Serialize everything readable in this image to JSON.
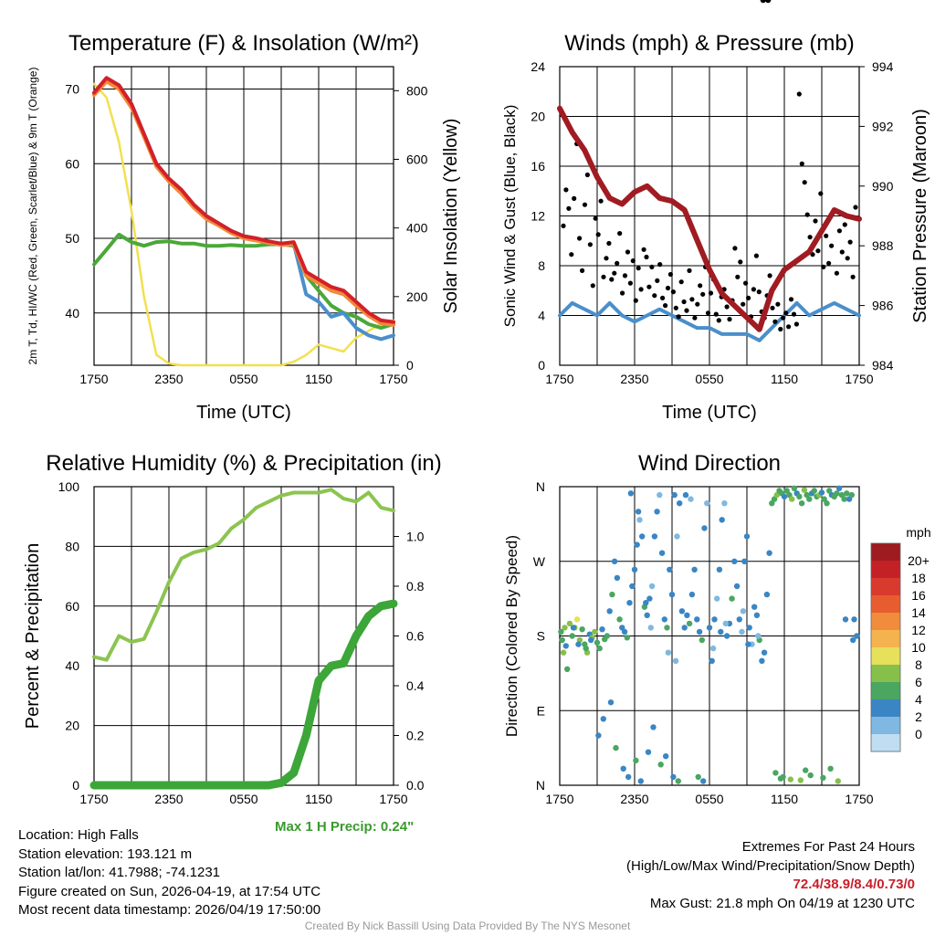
{
  "chart_data": [
    {
      "id": "temp",
      "type": "line",
      "title": "Temperature (F) & Insolation (W/m²)",
      "xlabel": "Time (UTC)",
      "ylabel": "2m T, Td, HI/WC (Red, Green, Scarlet/Blue) & 9m T (Orange)",
      "ylabel_right": "Solar Insolation (Yellow)",
      "xticks": [
        "1750",
        "2350",
        "0550",
        "1150",
        "1750"
      ],
      "yticks": [
        40,
        50,
        60,
        70
      ],
      "yticks_right": [
        0,
        200,
        400,
        600,
        800
      ],
      "ylim": [
        33,
        73
      ],
      "ylim_right": [
        0,
        870
      ],
      "x": [
        0,
        1,
        2,
        3,
        4,
        5,
        6,
        7,
        8,
        9,
        10,
        11,
        12,
        13,
        14,
        15,
        16,
        17,
        18,
        19,
        20,
        21,
        22,
        23,
        24
      ],
      "series": [
        {
          "name": "2m T",
          "color": "#d42028",
          "values": [
            69.5,
            71.5,
            70.5,
            68,
            64,
            60,
            58,
            56.5,
            54.5,
            53,
            52,
            51,
            50.3,
            50,
            49.6,
            49.3,
            49.5,
            45.5,
            44.5,
            43.5,
            43,
            41.5,
            40,
            39,
            38.8
          ]
        },
        {
          "name": "9m T",
          "color": "#f08a3a",
          "values": [
            69.2,
            71,
            70,
            67.5,
            63.6,
            59.6,
            57.6,
            56,
            54.1,
            52.6,
            51.7,
            50.7,
            50,
            49.7,
            49.4,
            49.1,
            49.2,
            45,
            44,
            43,
            42.5,
            41,
            39.6,
            38.6,
            38.4
          ]
        },
        {
          "name": "HI/WC",
          "color": "#4a8fcc",
          "values": [
            69.5,
            71.5,
            70.5,
            68,
            64,
            60,
            58,
            56.5,
            54.5,
            53,
            52,
            51,
            50.3,
            50,
            49.6,
            49.2,
            49.3,
            42.5,
            41.5,
            39.5,
            40,
            38,
            37,
            36.5,
            37
          ]
        },
        {
          "name": "2m Td",
          "color": "#4aa838",
          "values": [
            46.5,
            48.5,
            50.5,
            49.5,
            49,
            49.5,
            49.6,
            49.3,
            49.3,
            49,
            49,
            49.1,
            49,
            49,
            49.2,
            49.2,
            49,
            45,
            43,
            41,
            40,
            39.5,
            38.5,
            38,
            38.5
          ]
        },
        {
          "name": "Solar Insolation",
          "color": "#f2e050",
          "axis": "right",
          "values": [
            820,
            780,
            650,
            450,
            200,
            30,
            5,
            0,
            0,
            0,
            0,
            0,
            0,
            0,
            0,
            0,
            10,
            30,
            60,
            50,
            40,
            80,
            100,
            120,
            130
          ]
        }
      ]
    },
    {
      "id": "wind",
      "type": "line",
      "title": "Winds (mph) & Pressure (mb)",
      "xlabel": "Time (UTC)",
      "ylabel": "Sonic Wind & Gust (Blue, Black)",
      "ylabel_right": "Station Pressure (Maroon)",
      "xticks": [
        "1750",
        "2350",
        "0550",
        "1150",
        "1750"
      ],
      "yticks": [
        0,
        4,
        8,
        12,
        16,
        20,
        24
      ],
      "yticks_right": [
        984,
        986,
        988,
        990,
        992,
        994
      ],
      "ylim": [
        0,
        24
      ],
      "ylim_right": [
        984,
        994
      ],
      "x": [
        0,
        1,
        2,
        3,
        4,
        5,
        6,
        7,
        8,
        9,
        10,
        11,
        12,
        13,
        14,
        15,
        16,
        17,
        18,
        19,
        20,
        21,
        22,
        23,
        24
      ],
      "series": [
        {
          "name": "Sonic Wind",
          "color": "#4a8fcc",
          "values": [
            4,
            5,
            4.5,
            4,
            5,
            4,
            3.5,
            4,
            4.5,
            4,
            3.5,
            3,
            3,
            2.5,
            2.5,
            2.5,
            2,
            3,
            4,
            5,
            4,
            4.5,
            5,
            4.5,
            4
          ]
        },
        {
          "name": "Station Pressure",
          "color": "#a01c22",
          "axis": "right",
          "values": [
            992.6,
            991.8,
            991.2,
            990.3,
            989.6,
            989.4,
            989.8,
            990,
            989.6,
            989.5,
            989.2,
            988.2,
            987.2,
            986.4,
            986,
            985.6,
            985.2,
            986.5,
            987.2,
            987.5,
            987.8,
            988.5,
            989.2,
            989,
            988.9
          ]
        }
      ],
      "gusts": [
        11.2,
        14.1,
        12.6,
        8.9,
        13.4,
        17.8,
        10.2,
        7.6,
        12.9,
        15.3,
        9.7,
        6.4,
        11.8,
        10.5,
        13.2,
        7.1,
        8.6,
        9.8,
        6.9,
        7.4,
        8.2,
        10.6,
        5.8,
        7.2,
        9.1,
        6.6,
        8.4,
        5.2,
        7.8,
        6.1,
        9.3,
        8.7,
        6.3,
        7.9,
        5.6,
        6.8,
        8.1,
        5.4,
        4.8,
        6.2,
        7.3,
        5.9,
        4.6,
        3.9,
        6.7,
        5.1,
        4.4,
        7.6,
        5.3,
        3.8,
        4.9,
        6.4,
        5.7,
        7.9,
        4.2,
        5.8,
        6.9,
        4.1,
        3.6,
        5.5,
        6.1,
        4.7,
        3.7,
        5.2,
        9.4,
        7.1,
        8.3,
        4.9,
        6.6,
        5.4,
        3.9,
        6.1,
        8.8,
        5.9,
        4.3,
        3.8,
        5.6,
        7.2,
        4.6,
        3.5,
        4.9,
        2.9,
        3.8,
        4.2,
        3.1,
        5.3,
        4.1,
        3.3,
        21.8,
        16.2,
        14.7,
        12.1,
        10.3,
        8.9,
        11.6,
        9.2,
        13.8,
        7.9,
        10.4,
        8.2,
        9.6,
        12.4,
        7.4,
        10.8,
        9.1,
        11.3,
        8.6,
        9.9,
        7.1,
        12.7
      ],
      "annotations": {
        "max_gust": "Max Gust: 21.8 mph On 04/19 at 1230 UTC"
      }
    },
    {
      "id": "rh",
      "type": "line",
      "title": "Relative Humidity (%) & Precipitation (in)",
      "ylabel": "Percent & Precipitation",
      "xticks": [
        "1750",
        "2350",
        "0550",
        "1150",
        "1750"
      ],
      "yticks": [
        0,
        20,
        40,
        60,
        80,
        100
      ],
      "yticks_right": [
        "0.0",
        "0.2",
        "0.4",
        "0.6",
        "0.8",
        "1.0"
      ],
      "ylim": [
        0,
        100
      ],
      "ylim_right": [
        0,
        1.2
      ],
      "x": [
        0,
        1,
        2,
        3,
        4,
        5,
        6,
        7,
        8,
        9,
        10,
        11,
        12,
        13,
        14,
        15,
        16,
        17,
        18,
        19,
        20,
        21,
        22,
        23,
        24
      ],
      "series": [
        {
          "name": "Relative Humidity",
          "color": "#8cc450",
          "values": [
            43,
            42,
            50,
            48,
            49,
            58,
            68,
            76,
            78,
            79,
            81,
            86,
            89,
            93,
            95,
            97,
            98,
            98,
            98,
            99,
            96,
            95,
            98,
            93,
            92
          ]
        },
        {
          "name": "Precipitation",
          "color": "#3ca638",
          "axis": "right",
          "values": [
            0,
            0,
            0,
            0,
            0,
            0,
            0,
            0,
            0,
            0,
            0,
            0,
            0,
            0,
            0,
            0.01,
            0.05,
            0.2,
            0.42,
            0.48,
            0.49,
            0.6,
            0.68,
            0.72,
            0.73
          ]
        }
      ],
      "annotations": {
        "max_precip": "Max 1 H Precip: 0.24\""
      }
    },
    {
      "id": "dir",
      "type": "scatter",
      "title": "Wind Direction",
      "ylabel": "Direction (Colored By Speed)",
      "xticks": [
        "1750",
        "2350",
        "0550",
        "1150",
        "1750"
      ],
      "yticks": [
        "N",
        "E",
        "S",
        "W",
        "N"
      ],
      "ylim": [
        0,
        360
      ],
      "colorbar_title": "mph",
      "colorbar_labels": [
        "20+",
        "18",
        "16",
        "14",
        "12",
        "10",
        "8",
        "6",
        "4",
        "2",
        "0"
      ],
      "colorbar_colors": [
        "#9e1b1f",
        "#c42127",
        "#d93a2e",
        "#e85d2f",
        "#f08c3b",
        "#f4b34e",
        "#e6e05a",
        "#86c04a",
        "#4aa661",
        "#3a86c4",
        "#7fb8e0",
        "#bfdef2"
      ],
      "points_x": [
        0.1,
        0.2,
        0.3,
        0.4,
        0.5,
        0.6,
        0.8,
        1.0,
        1.2,
        1.4,
        1.6,
        1.8,
        2.0,
        2.2,
        2.4,
        2.6,
        2.8,
        3.0,
        3.2,
        3.4,
        3.6,
        3.8,
        4.0,
        4.2,
        4.4,
        4.6,
        4.8,
        5.0,
        5.2,
        5.4,
        5.6,
        5.8,
        6.0,
        6.2,
        6.4,
        6.6,
        6.8,
        7.0,
        7.2,
        7.4,
        7.6,
        7.8,
        8.0,
        8.2,
        8.4,
        8.6,
        8.8,
        9.0,
        9.2,
        9.4,
        9.6,
        9.8,
        10.0,
        10.2,
        10.4,
        10.6,
        10.8,
        11.0,
        11.2,
        11.4,
        11.6,
        11.8,
        12.0,
        12.2,
        12.4,
        12.6,
        12.8,
        13.0,
        13.2,
        13.4,
        13.6,
        13.8,
        14.0,
        14.2,
        14.4,
        14.6,
        14.8,
        15.0,
        15.2,
        15.4,
        15.6,
        15.8,
        16.0,
        16.2,
        16.4,
        16.6,
        16.8,
        17.0,
        17.2,
        17.4,
        17.6,
        17.8,
        18.0,
        18.2,
        18.4,
        18.6,
        18.8,
        19.0,
        19.2,
        19.4,
        19.6,
        19.8,
        20.0,
        20.2,
        20.4,
        20.6,
        20.8,
        21.0,
        21.2,
        21.4,
        21.6,
        21.8,
        22.0,
        22.2,
        22.4,
        22.6,
        22.8,
        23.0,
        23.2,
        23.4,
        23.6,
        23.8,
        1.1,
        1.5,
        2.1,
        2.5,
        3.1,
        3.5,
        4.1,
        4.5,
        5.1,
        5.5,
        6.1,
        6.5,
        7.1,
        7.5,
        8.1,
        8.5,
        9.1,
        9.5,
        10.1,
        10.5,
        5.7,
        6.3,
        6.9,
        7.3,
        8.7,
        9.3,
        11.1,
        11.5,
        17.3,
        17.7,
        19.3,
        20.1,
        21.7,
        22.3,
        17.9,
        18.5,
        19.7,
        21.1,
        22.9,
        23.5,
        12.3,
        12.9,
        13.3,
        14.7,
        15.1,
        15.9,
        16.3,
        16.7
      ],
      "points_dir": [
        185,
        175,
        160,
        190,
        168,
        140,
        195,
        180,
        190,
        200,
        175,
        188,
        170,
        160,
        182,
        178,
        185,
        172,
        165,
        188,
        176,
        180,
        210,
        230,
        270,
        250,
        200,
        190,
        185,
        178,
        220,
        240,
        260,
        290,
        320,
        300,
        215,
        205,
        225,
        240,
        300,
        330,
        350,
        280,
        200,
        190,
        260,
        230,
        350,
        300,
        340,
        210,
        190,
        205,
        195,
        230,
        260,
        200,
        185,
        175,
        310,
        340,
        190,
        150,
        200,
        225,
        260,
        320,
        340,
        180,
        195,
        225,
        270,
        240,
        200,
        185,
        270,
        300,
        190,
        170,
        215,
        205,
        175,
        150,
        160,
        230,
        280,
        340,
        345,
        350,
        355,
        352,
        348,
        355,
        350,
        345,
        358,
        352,
        348,
        340,
        356,
        350,
        345,
        352,
        355,
        348,
        350,
        353,
        345,
        340,
        355,
        350,
        348,
        352,
        358,
        350,
        345,
        352,
        345,
        350,
        200,
        180,
        190,
        170,
        165,
        175,
        60,
        80,
        100,
        45,
        20,
        10,
        30,
        5,
        40,
        70,
        25,
        35,
        10,
        5,
        350,
        345,
        352,
        330,
        220,
        190,
        160,
        150,
        10,
        5,
        15,
        8,
        6,
        12,
        20,
        5,
        10,
        7,
        18,
        9,
        200,
        175,
        165,
        185,
        195,
        210,
        170,
        180
      ],
      "points_speed": [
        5,
        4,
        7,
        6,
        3,
        4,
        7,
        5,
        6,
        8,
        7,
        5,
        4,
        6,
        3,
        7,
        6,
        5,
        4,
        3,
        5,
        4,
        3,
        4,
        2,
        3,
        4,
        3,
        2,
        4,
        3,
        2,
        3,
        2,
        1,
        2,
        4,
        3,
        2,
        1,
        2,
        3,
        1,
        2,
        3,
        4,
        2,
        3,
        2,
        1,
        2,
        3,
        2,
        3,
        4,
        2,
        3,
        2,
        3,
        4,
        2,
        1,
        2,
        3,
        2,
        1,
        2,
        3,
        1,
        2,
        3,
        4,
        2,
        3,
        2,
        1,
        2,
        3,
        2,
        1,
        2,
        3,
        4,
        3,
        2,
        3,
        2,
        4,
        5,
        6,
        4,
        5,
        3,
        4,
        5,
        6,
        4,
        3,
        5,
        4,
        6,
        5,
        4,
        3,
        5,
        4,
        6,
        3,
        4,
        5,
        4,
        3,
        4,
        5,
        3,
        4,
        5,
        4,
        3,
        4,
        2,
        3,
        2,
        3,
        4,
        2,
        3,
        2,
        3,
        4,
        2,
        3,
        4,
        3,
        2,
        3,
        4,
        2,
        3,
        4,
        2,
        1,
        3,
        2,
        2,
        1,
        1,
        0,
        4,
        3,
        5,
        4,
        6,
        5,
        5,
        7,
        4,
        6,
        5,
        4,
        2,
        3,
        1,
        2,
        0,
        1,
        2,
        1
      ]
    }
  ],
  "info": {
    "location": "Location: High Falls",
    "elevation": "Station elevation: 193.121 m",
    "latlon": "Station lat/lon: 41.7988; -74.1231",
    "created": "Figure created on Sun, 2026-04-19, at 17:54 UTC",
    "recent": "Most recent data timestamp: 2026/04/19 17:50:00"
  },
  "extremes": {
    "title": "Extremes For Past 24 Hours",
    "subtitle": "(High/Low/Max Wind/Precipitation/Snow Depth)",
    "values": "72.4/38.9/8.4/0.73/0",
    "max_gust": "Max Gust: 21.8 mph On 04/19 at 1230 UTC"
  },
  "credit": "Created By Nick Bassill Using Data Provided By The NYS Mesonet"
}
